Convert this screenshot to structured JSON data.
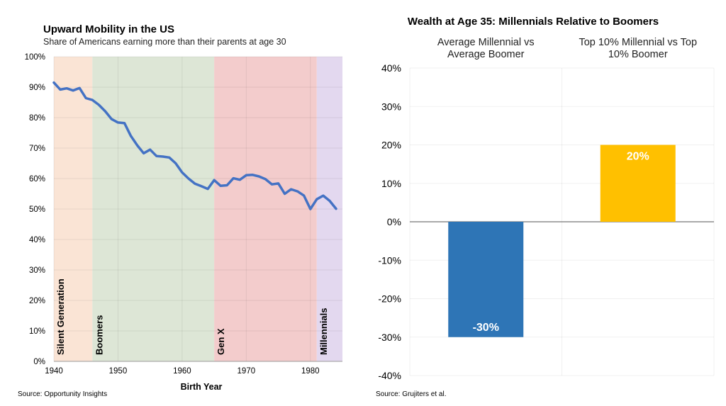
{
  "chart_data": [
    {
      "type": "line",
      "title": "Upward Mobility in the US",
      "subtitle": "Share of Americans earning more than their parents at age 30",
      "xlabel": "Birth Year",
      "ylabel": "",
      "xlim": [
        1940,
        1985
      ],
      "ylim": [
        0,
        100
      ],
      "x_ticks": [
        1940,
        1950,
        1960,
        1970,
        1980
      ],
      "y_ticks": [
        "0%",
        "10%",
        "20%",
        "30%",
        "40%",
        "50%",
        "60%",
        "70%",
        "80%",
        "90%",
        "100%"
      ],
      "grid": true,
      "source": "Source: Opportunity Insights",
      "line_color": "#4472c4",
      "bands": [
        {
          "label": "Silent Generation",
          "from": 1940,
          "to": 1946,
          "color": "#fae4d5"
        },
        {
          "label": "Boomers",
          "from": 1946,
          "to": 1965,
          "color": "#dde6d6"
        },
        {
          "label": "Gen X",
          "from": 1965,
          "to": 1981,
          "color": "#f3cccc"
        },
        {
          "label": "Millennials",
          "from": 1981,
          "to": 1985,
          "color": "#e3d8ef"
        }
      ],
      "series": [
        {
          "x": [
            1940,
            1941,
            1942,
            1943,
            1944,
            1945,
            1946,
            1947,
            1948,
            1949,
            1950,
            1951,
            1952,
            1953,
            1954,
            1955,
            1956,
            1957,
            1958,
            1959,
            1960,
            1961,
            1962,
            1963,
            1964,
            1965,
            1966,
            1967,
            1968,
            1969,
            1970,
            1971,
            1972,
            1973,
            1974,
            1975,
            1976,
            1977,
            1978,
            1979,
            1980,
            1981,
            1982,
            1983,
            1984
          ],
          "values": [
            91.5,
            89.2,
            89.6,
            88.9,
            89.7,
            86.4,
            85.8,
            84.2,
            82.1,
            79.5,
            78.4,
            78.2,
            74.0,
            70.9,
            68.3,
            69.5,
            67.4,
            67.2,
            66.9,
            65.0,
            62.0,
            60.0,
            58.3,
            57.5,
            56.6,
            59.5,
            57.6,
            57.8,
            60.1,
            59.6,
            61.1,
            61.2,
            60.7,
            59.8,
            58.1,
            58.4,
            55.0,
            56.5,
            55.8,
            54.4,
            50.0,
            53.2,
            54.4,
            52.7,
            50.1
          ]
        }
      ]
    },
    {
      "type": "bar",
      "title": "Wealth at Age 35: Millennials Relative to Boomers",
      "categories": [
        "Average Millennial vs Average Boomer",
        "Top 10% Millennial vs Top 10% Boomer"
      ],
      "category_lines": [
        [
          "Average Millennial vs",
          "Average Boomer"
        ],
        [
          "Top 10% Millennial vs Top",
          "10% Boomer"
        ]
      ],
      "values": [
        -30,
        20
      ],
      "data_labels": [
        "-30%",
        "20%"
      ],
      "colors": [
        "#2e75b6",
        "#ffc000"
      ],
      "ylim": [
        -40,
        40
      ],
      "y_ticks": [
        "-40%",
        "-30%",
        "-20%",
        "-10%",
        "0%",
        "10%",
        "20%",
        "30%",
        "40%"
      ],
      "grid": true,
      "source": "Source: Grujiters et al."
    }
  ]
}
